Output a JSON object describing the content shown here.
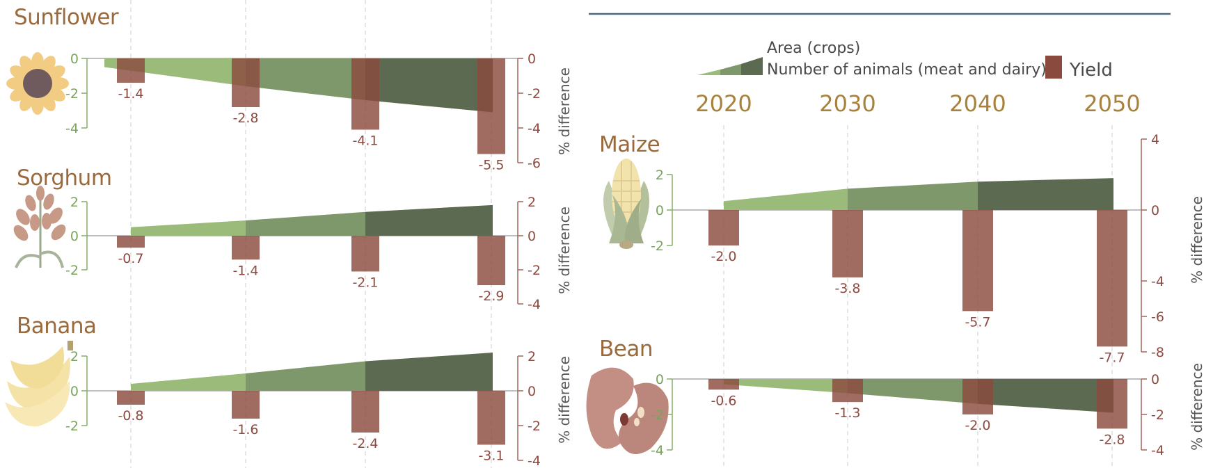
{
  "legend": {
    "area_label": "Area (crops)",
    "animals_label": "Number of animals (meat and dairy)",
    "yield_label": "Yield"
  },
  "colors": {
    "yield_bar": "#8b4a3e",
    "area_light": "#9bbb7a",
    "area_mid": "#7e976b",
    "area_dark": "#5b6a50",
    "green_axis": "#86ad69",
    "red_axis": "#a3645a",
    "title": "#9a6a3c",
    "year": "#a8823c",
    "header_line": "#4a6a84"
  },
  "chart_data": [
    {
      "type": "bar",
      "title": "Sunflower",
      "icon": "sunflower-icon",
      "categories": [
        "2020",
        "2030",
        "2040",
        "2050"
      ],
      "yield_values": [
        -1.4,
        -2.8,
        -4.1,
        -5.5
      ],
      "value_labels": [
        "-1.4",
        "-2.8",
        "-4.1",
        "-5.5"
      ],
      "area_values": [
        -0.5,
        -1.6,
        -2.4,
        -3.1
      ],
      "left_ticks": [
        "0",
        "-2",
        "-4"
      ],
      "left_ylim": [
        -4,
        0
      ],
      "right_ticks": [
        "0",
        "-2",
        "-4",
        "-6"
      ],
      "right_ylim": [
        -6,
        0
      ],
      "ylabel": "% difference"
    },
    {
      "type": "bar",
      "title": "Sorghum",
      "icon": "sorghum-icon",
      "categories": [
        "2020",
        "2030",
        "2040",
        "2050"
      ],
      "yield_values": [
        -0.7,
        -1.4,
        -2.1,
        -2.9
      ],
      "value_labels": [
        "-0.7",
        "-1.4",
        "-2.1",
        "-2.9"
      ],
      "area_values": [
        0.5,
        0.9,
        1.4,
        1.8
      ],
      "left_ticks": [
        "2",
        "0",
        "-2"
      ],
      "left_ylim": [
        -2,
        2
      ],
      "right_ticks": [
        "2",
        "0",
        "-2",
        "-4"
      ],
      "right_ylim": [
        -4,
        2
      ],
      "ylabel": "% difference"
    },
    {
      "type": "bar",
      "title": "Banana",
      "icon": "banana-icon",
      "categories": [
        "2020",
        "2030",
        "2040",
        "2050"
      ],
      "yield_values": [
        -0.8,
        -1.6,
        -2.4,
        -3.1
      ],
      "value_labels": [
        "-0.8",
        "-1.6",
        "-2.4",
        "-3.1"
      ],
      "area_values": [
        0.4,
        1.0,
        1.7,
        2.2
      ],
      "left_ticks": [
        "2",
        "0",
        "-2"
      ],
      "left_ylim": [
        -2,
        2
      ],
      "right_ticks": [
        "2",
        "0",
        "-2",
        "-4"
      ],
      "right_ylim": [
        -4,
        2
      ],
      "ylabel": "% difference"
    },
    {
      "type": "bar",
      "title": "Maize",
      "icon": "maize-icon",
      "categories": [
        "2020",
        "2030",
        "2040",
        "2050"
      ],
      "yield_values": [
        -2.0,
        -3.8,
        -5.7,
        -7.7
      ],
      "value_labels": [
        "-2.0",
        "-3.8",
        "-5.7",
        "-7.7"
      ],
      "area_values": [
        0.5,
        1.2,
        1.6,
        1.8
      ],
      "left_ticks": [
        "2",
        "0",
        "-2"
      ],
      "left_ylim": [
        -2,
        2
      ],
      "right_ticks": [
        "4",
        "0",
        "-4",
        "-6",
        "-8"
      ],
      "right_ylim": [
        -8,
        4
      ],
      "ylabel": "% difference"
    },
    {
      "type": "bar",
      "title": "Bean",
      "icon": "bean-icon",
      "categories": [
        "2020",
        "2030",
        "2040",
        "2050"
      ],
      "yield_values": [
        -0.6,
        -1.3,
        -2.0,
        -2.8
      ],
      "value_labels": [
        "-0.6",
        "-1.3",
        "-2.0",
        "-2.8"
      ],
      "area_values": [
        -0.3,
        -0.8,
        -1.4,
        -1.9
      ],
      "left_ticks": [
        "0",
        "-2",
        "-4"
      ],
      "left_ylim": [
        -4,
        0
      ],
      "right_ticks": [
        "0",
        "-2",
        "-4"
      ],
      "right_ylim": [
        -4,
        0
      ],
      "ylabel": "% difference"
    }
  ]
}
